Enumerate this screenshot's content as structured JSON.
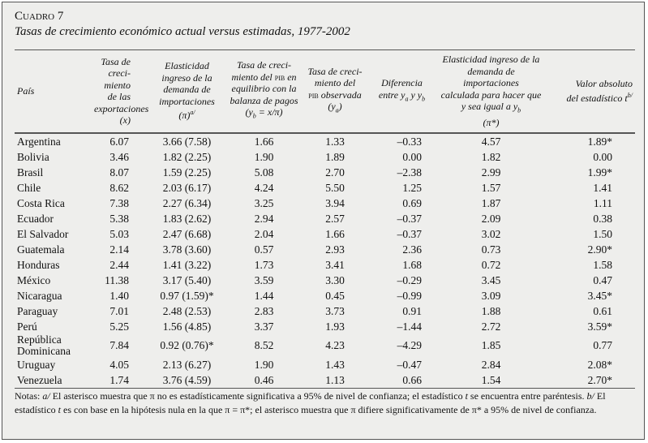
{
  "header": {
    "label": "Cuadro 7",
    "title": "Tasas de crecimiento económico actual versus estimadas, 1977-2002"
  },
  "table": {
    "columns": [
      [
        [
          "País"
        ]
      ],
      [
        [
          "Tasa de creci-"
        ],
        [
          "miento de las"
        ],
        [
          "exportaciones"
        ],
        [
          "(x)"
        ]
      ],
      [
        [
          "Elasticidad"
        ],
        [
          "ingreso de la"
        ],
        [
          "demanda de"
        ],
        [
          "importaciones"
        ],
        [
          "(π)",
          {
            "sup": "a/"
          }
        ]
      ],
      [
        [
          "Tasa de creci-"
        ],
        [
          "miento del ",
          {
            "sc": "pib"
          },
          " en"
        ],
        [
          "equilibrio con la"
        ],
        [
          "balanza de pagos"
        ],
        [
          "(y",
          {
            "sub": "b"
          },
          " = x/π)"
        ]
      ],
      [
        [
          "Tasa de creci-"
        ],
        [
          "miento del"
        ],
        [
          {
            "sc": "pib"
          },
          " observada"
        ],
        [
          "(y",
          {
            "sub": "a"
          },
          ")"
        ]
      ],
      [
        [
          "Diferencia"
        ],
        [
          "entre y",
          {
            "sub": "a"
          },
          " y y",
          {
            "sub": "b"
          }
        ]
      ],
      [
        [
          "Elasticidad ingreso de la"
        ],
        [
          "demanda de importaciones"
        ],
        [
          "calculada para hacer que"
        ],
        [
          "y sea igual a y",
          {
            "sub": "b"
          }
        ],
        [
          "(π*)"
        ]
      ],
      [
        [
          "Valor absoluto"
        ],
        [
          "del estadístico t",
          {
            "sup": "b/"
          }
        ]
      ]
    ],
    "rows": [
      [
        "Argentina",
        "6.07",
        "3.66 (7.58)",
        "1.66",
        "1.33",
        "–0.33",
        "4.57",
        "1.89*"
      ],
      [
        "Bolivia",
        "3.46",
        "1.82 (2.25)",
        "1.90",
        "1.89",
        "0.00",
        "1.82",
        "0.00"
      ],
      [
        "Brasil",
        "8.07",
        "1.59 (2.25)",
        "5.08",
        "2.70",
        "–2.38",
        "2.99",
        "1.99*"
      ],
      [
        "Chile",
        "8.62",
        "2.03 (6.17)",
        "4.24",
        "5.50",
        "1.25",
        "1.57",
        "1.41"
      ],
      [
        "Costa Rica",
        "7.38",
        "2.27 (6.34)",
        "3.25",
        "3.94",
        "0.69",
        "1.87",
        "1.11"
      ],
      [
        "Ecuador",
        "5.38",
        "1.83 (2.62)",
        "2.94",
        "2.57",
        "–0.37",
        "2.09",
        "0.38"
      ],
      [
        "El Salvador",
        "5.03",
        "2.47 (6.68)",
        "2.04",
        "1.66",
        "–0.37",
        "3.02",
        "1.50"
      ],
      [
        "Guatemala",
        "2.14",
        "3.78 (3.60)",
        "0.57",
        "2.93",
        "2.36",
        "0.73",
        "2.90*"
      ],
      [
        "Honduras",
        "2.44",
        "1.41 (3.22)",
        "1.73",
        "3.41",
        "1.68",
        "0.72",
        "1.58"
      ],
      [
        "México",
        "11.38",
        "3.17 (5.40)",
        "3.59",
        "3.30",
        "–0.29",
        "3.45",
        "0.47"
      ],
      [
        "Nicaragua",
        "1.40",
        "0.97 (1.59)*",
        "1.44",
        "0.45",
        "–0.99",
        "3.09",
        "3.45*"
      ],
      [
        "Paraguay",
        "7.01",
        "2.48 (2.53)",
        "2.83",
        "3.73",
        "0.91",
        "1.88",
        "0.61"
      ],
      [
        "Perú",
        "5.25",
        "1.56 (4.85)",
        "3.37",
        "1.93",
        "–1.44",
        "2.72",
        "3.59*"
      ],
      [
        "República Dominicana",
        "7.84",
        "0.92 (0.76)*",
        "8.52",
        "4.23",
        "–4.29",
        "1.85",
        "0.77"
      ],
      [
        "Uruguay",
        "4.05",
        "2.13 (6.27)",
        "1.90",
        "1.43",
        "–0.47",
        "2.84",
        "2.08*"
      ],
      [
        "Venezuela",
        "1.74",
        "3.76 (4.59)",
        "0.46",
        "1.13",
        "0.66",
        "1.54",
        "2.70*"
      ]
    ]
  },
  "notes": [
    "Notas: ",
    {
      "i": "a/"
    },
    " El asterisco muestra que π no es estadísticamente significativa a 95% de nivel de confianza; el estadístico ",
    {
      "i": "t"
    },
    " se encuentra entre paréntesis. ",
    {
      "i": "b/"
    },
    " El estadístico ",
    {
      "i": "t"
    },
    " es con base en la hipótesis nula en la que π = π*; el asterisco muestra que π difiere significativamente de π* a 95% de nivel de confianza."
  ]
}
